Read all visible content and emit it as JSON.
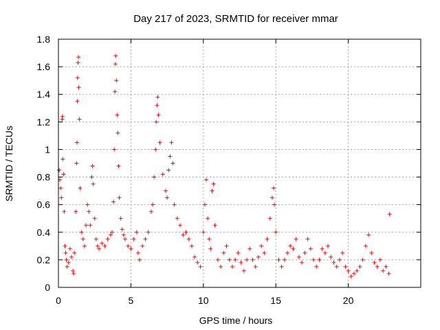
{
  "chart_data": {
    "type": "scatter",
    "title": "Day 217 of 2023, SRMTID for receiver mmar",
    "xlabel": "GPS time / hours",
    "ylabel": "SRMTID / TECUs",
    "xlim": [
      0,
      25
    ],
    "ylim": [
      0,
      1.8
    ],
    "xticks": [
      0,
      5,
      10,
      15,
      20
    ],
    "xtick_labels": [
      "0",
      "5",
      "10",
      "15",
      "20"
    ],
    "yticks": [
      0,
      0.2,
      0.4,
      0.6,
      0.8,
      1.0,
      1.2,
      1.4,
      1.6,
      1.8
    ],
    "ytick_labels": [
      "0",
      "0.2",
      "0.4",
      "0.6",
      "0.8",
      "1",
      "1.2",
      "1.4",
      "1.6",
      "1.8"
    ],
    "grid": true,
    "marker": "+",
    "series": [
      {
        "name": "SRMTID",
        "color": "#ff0000",
        "points": [
          [
            0.05,
            0.85
          ],
          [
            0.1,
            0.78
          ],
          [
            0.15,
            0.72
          ],
          [
            0.2,
            0.65
          ],
          [
            0.25,
            1.22
          ],
          [
            0.28,
            1.24
          ],
          [
            0.3,
            0.93
          ],
          [
            0.35,
            0.82
          ],
          [
            0.4,
            0.55
          ],
          [
            0.45,
            0.3
          ],
          [
            0.5,
            0.25
          ],
          [
            0.55,
            0.2
          ],
          [
            0.6,
            0.15
          ],
          [
            0.7,
            0.18
          ],
          [
            0.8,
            0.28
          ],
          [
            0.9,
            0.22
          ],
          [
            1.0,
            0.12
          ],
          [
            1.05,
            0.1
          ],
          [
            1.1,
            0.25
          ],
          [
            1.2,
            0.55
          ],
          [
            1.25,
            0.9
          ],
          [
            1.28,
            1.05
          ],
          [
            1.3,
            1.35
          ],
          [
            1.32,
            1.52
          ],
          [
            1.35,
            1.63
          ],
          [
            1.38,
            1.67
          ],
          [
            1.4,
            1.45
          ],
          [
            1.45,
            1.22
          ],
          [
            1.5,
            0.72
          ],
          [
            1.6,
            0.4
          ],
          [
            1.7,
            0.35
          ],
          [
            1.8,
            0.3
          ],
          [
            1.9,
            0.45
          ],
          [
            2.0,
            0.6
          ],
          [
            2.1,
            0.55
          ],
          [
            2.2,
            0.45
          ],
          [
            2.3,
            0.8
          ],
          [
            2.35,
            0.88
          ],
          [
            2.4,
            0.75
          ],
          [
            2.5,
            0.5
          ],
          [
            2.6,
            0.35
          ],
          [
            2.7,
            0.3
          ],
          [
            2.8,
            0.28
          ],
          [
            3.0,
            0.32
          ],
          [
            3.2,
            0.3
          ],
          [
            3.4,
            0.35
          ],
          [
            3.6,
            0.38
          ],
          [
            3.7,
            0.4
          ],
          [
            3.8,
            0.62
          ],
          [
            3.85,
            1.0
          ],
          [
            3.9,
            1.42
          ],
          [
            3.93,
            1.62
          ],
          [
            3.95,
            1.68
          ],
          [
            4.0,
            1.5
          ],
          [
            4.05,
            1.25
          ],
          [
            4.1,
            1.12
          ],
          [
            4.15,
            0.88
          ],
          [
            4.2,
            0.65
          ],
          [
            4.3,
            0.5
          ],
          [
            4.4,
            0.42
          ],
          [
            4.5,
            0.38
          ],
          [
            4.6,
            0.35
          ],
          [
            4.8,
            0.3
          ],
          [
            5.0,
            0.28
          ],
          [
            5.2,
            0.35
          ],
          [
            5.4,
            0.4
          ],
          [
            5.5,
            0.25
          ],
          [
            5.6,
            0.2
          ],
          [
            5.8,
            0.3
          ],
          [
            6.0,
            0.35
          ],
          [
            6.2,
            0.4
          ],
          [
            6.4,
            0.55
          ],
          [
            6.5,
            0.6
          ],
          [
            6.6,
            0.8
          ],
          [
            6.7,
            1.0
          ],
          [
            6.75,
            1.2
          ],
          [
            6.8,
            1.32
          ],
          [
            6.85,
            1.38
          ],
          [
            6.9,
            1.25
          ],
          [
            7.0,
            1.05
          ],
          [
            7.2,
            0.82
          ],
          [
            7.4,
            0.7
          ],
          [
            7.5,
            0.65
          ],
          [
            7.6,
            0.85
          ],
          [
            7.7,
            0.95
          ],
          [
            7.8,
            1.05
          ],
          [
            7.9,
            0.9
          ],
          [
            8.0,
            0.6
          ],
          [
            8.2,
            0.5
          ],
          [
            8.4,
            0.45
          ],
          [
            8.6,
            0.38
          ],
          [
            8.8,
            0.4
          ],
          [
            9.0,
            0.35
          ],
          [
            9.2,
            0.3
          ],
          [
            9.4,
            0.22
          ],
          [
            9.6,
            0.18
          ],
          [
            9.8,
            0.15
          ],
          [
            10.0,
            0.4
          ],
          [
            10.1,
            0.6
          ],
          [
            10.2,
            0.78
          ],
          [
            10.3,
            0.5
          ],
          [
            10.4,
            0.35
          ],
          [
            10.5,
            0.28
          ],
          [
            10.6,
            0.7
          ],
          [
            10.7,
            0.75
          ],
          [
            10.8,
            0.45
          ],
          [
            11.0,
            0.2
          ],
          [
            11.2,
            0.15
          ],
          [
            11.4,
            0.25
          ],
          [
            11.6,
            0.3
          ],
          [
            11.8,
            0.2
          ],
          [
            12.0,
            0.15
          ],
          [
            12.2,
            0.2
          ],
          [
            12.4,
            0.25
          ],
          [
            12.6,
            0.18
          ],
          [
            12.8,
            0.12
          ],
          [
            13.0,
            0.2
          ],
          [
            13.2,
            0.28
          ],
          [
            13.4,
            0.2
          ],
          [
            13.6,
            0.15
          ],
          [
            13.8,
            0.22
          ],
          [
            14.0,
            0.3
          ],
          [
            14.2,
            0.25
          ],
          [
            14.4,
            0.35
          ],
          [
            14.6,
            0.5
          ],
          [
            14.75,
            0.65
          ],
          [
            14.85,
            0.72
          ],
          [
            14.9,
            0.6
          ],
          [
            15.0,
            0.4
          ],
          [
            15.2,
            0.2
          ],
          [
            15.4,
            0.15
          ],
          [
            15.6,
            0.2
          ],
          [
            15.8,
            0.25
          ],
          [
            16.0,
            0.3
          ],
          [
            16.2,
            0.28
          ],
          [
            16.4,
            0.35
          ],
          [
            16.6,
            0.22
          ],
          [
            16.8,
            0.18
          ],
          [
            17.0,
            0.25
          ],
          [
            17.2,
            0.35
          ],
          [
            17.4,
            0.28
          ],
          [
            17.6,
            0.2
          ],
          [
            17.8,
            0.15
          ],
          [
            18.0,
            0.2
          ],
          [
            18.2,
            0.28
          ],
          [
            18.4,
            0.25
          ],
          [
            18.6,
            0.3
          ],
          [
            18.8,
            0.22
          ],
          [
            19.0,
            0.18
          ],
          [
            19.2,
            0.15
          ],
          [
            19.4,
            0.2
          ],
          [
            19.6,
            0.25
          ],
          [
            19.8,
            0.15
          ],
          [
            20.0,
            0.12
          ],
          [
            20.2,
            0.08
          ],
          [
            20.4,
            0.1
          ],
          [
            20.6,
            0.12
          ],
          [
            20.8,
            0.15
          ],
          [
            21.0,
            0.2
          ],
          [
            21.2,
            0.3
          ],
          [
            21.4,
            0.38
          ],
          [
            21.6,
            0.25
          ],
          [
            21.8,
            0.18
          ],
          [
            22.0,
            0.15
          ],
          [
            22.2,
            0.2
          ],
          [
            22.4,
            0.12
          ],
          [
            22.6,
            0.15
          ],
          [
            22.8,
            0.1
          ],
          [
            22.85,
            0.53
          ]
        ]
      }
    ]
  }
}
